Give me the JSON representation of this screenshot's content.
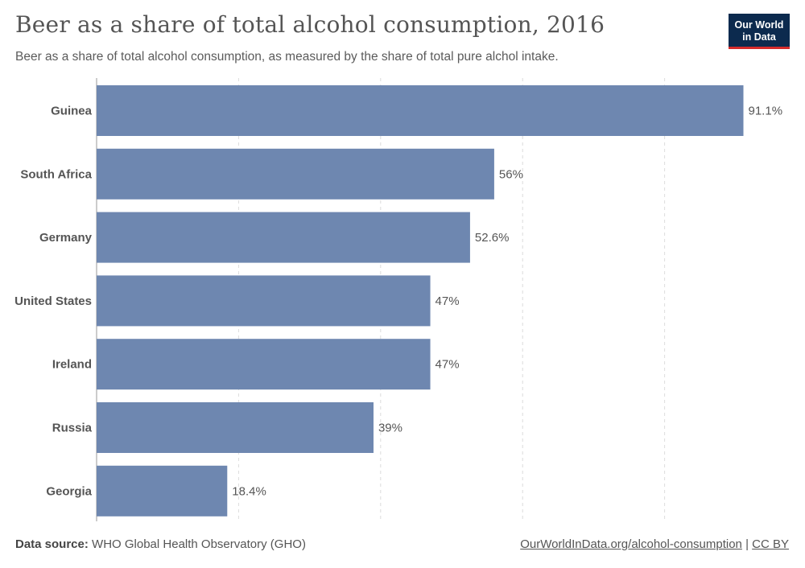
{
  "header": {
    "title": "Beer as a share of total alcohol consumption, 2016",
    "subtitle": "Beer as a share of total alcohol consumption, as measured by the share of total pure alchol intake."
  },
  "logo": {
    "line1": "Our World",
    "line2": "in Data"
  },
  "footer": {
    "source_label": "Data source:",
    "source_text": "WHO Global Health Observatory (GHO)",
    "link_text": "OurWorldInData.org/alcohol-consumption",
    "separator": "|",
    "license": "CC BY"
  },
  "colors": {
    "bar": "#6e87b0",
    "logo_bg": "#0c2a4e",
    "logo_accent": "#d42b2b"
  },
  "chart_data": {
    "type": "bar",
    "orientation": "horizontal",
    "categories": [
      "Guinea",
      "South Africa",
      "Germany",
      "United States",
      "Ireland",
      "Russia",
      "Georgia"
    ],
    "values": [
      91.1,
      56,
      52.6,
      47,
      47,
      39,
      18.4
    ],
    "value_labels": [
      "91.1%",
      "56%",
      "52.6%",
      "47%",
      "47%",
      "39%",
      "18.4%"
    ],
    "xlim": [
      0,
      100
    ],
    "grid": true,
    "gridline_values": [
      20,
      40,
      60,
      80,
      100
    ],
    "legend": "none"
  }
}
